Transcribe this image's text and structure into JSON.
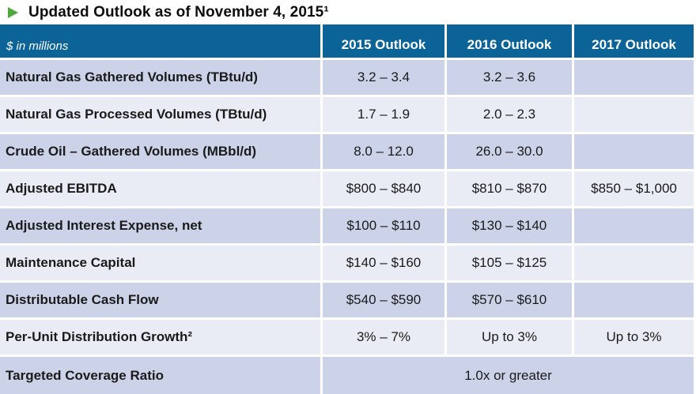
{
  "title": {
    "text": "Updated Outlook as of November 4, 2015¹"
  },
  "icons": {
    "bullet": "right-pointing-triangle"
  },
  "colors": {
    "header_blue": "#0b6397",
    "row_dark": "#ccd3e8",
    "row_light": "#e9ecf5",
    "bullet_green": "#4fa83c"
  },
  "table": {
    "header": {
      "units_label": "$ in millions",
      "columns": [
        "2015 Outlook",
        "2016 Outlook",
        "2017 Outlook"
      ]
    },
    "rows": [
      {
        "label": "Natural Gas Gathered Volumes (TBtu/d)",
        "values": [
          "3.2 – 3.4",
          "3.2 – 3.6",
          ""
        ]
      },
      {
        "label": "Natural Gas Processed Volumes (TBtu/d)",
        "values": [
          "1.7 – 1.9",
          "2.0 – 2.3",
          ""
        ]
      },
      {
        "label": "Crude Oil – Gathered Volumes (MBbl/d)",
        "values": [
          "8.0 – 12.0",
          "26.0 – 30.0",
          ""
        ]
      },
      {
        "label": "Adjusted EBITDA",
        "values": [
          "$800 – $840",
          "$810 – $870",
          "$850 – $1,000"
        ]
      },
      {
        "label": "Adjusted Interest Expense, net",
        "values": [
          "$100 – $110",
          "$130 – $140",
          ""
        ]
      },
      {
        "label": "Maintenance Capital",
        "values": [
          "$140 – $160",
          "$105 – $125",
          ""
        ]
      },
      {
        "label": "Distributable Cash Flow",
        "values": [
          "$540 – $590",
          "$570 – $610",
          ""
        ]
      },
      {
        "label": "Per-Unit Distribution Growth²",
        "values": [
          "3% – 7%",
          "Up to 3%",
          "Up to 3%"
        ]
      },
      {
        "label": "Targeted Coverage Ratio",
        "merged_value": "1.0x or greater"
      }
    ]
  }
}
